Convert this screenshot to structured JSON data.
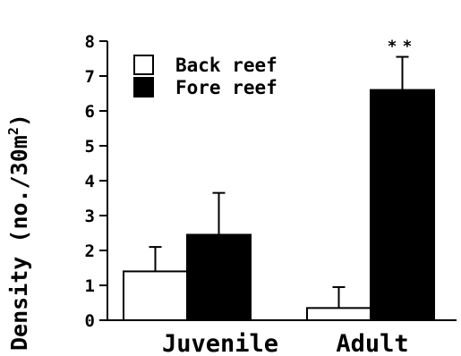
{
  "chart_data": {
    "type": "bar",
    "ylabel_main": "Density  (no./30m",
    "ylabel_sup": "2",
    "ylabel_close": ")",
    "xlabel": "",
    "ylim": [
      0,
      8
    ],
    "yticks": [
      "0",
      "1",
      "2",
      "3",
      "4",
      "5",
      "6",
      "7",
      "8"
    ],
    "categories": [
      "Juvenile",
      "Adult"
    ],
    "legend_position": "top-left",
    "grid": false,
    "series": [
      {
        "name": "Back reef",
        "values": [
          1.4,
          0.35
        ],
        "errors": [
          0.7,
          0.6
        ],
        "color": "#ffffff"
      },
      {
        "name": "Fore reef",
        "values": [
          2.45,
          6.6
        ],
        "errors": [
          1.2,
          0.95
        ],
        "color": "#000000"
      }
    ],
    "annotations": [
      {
        "text": "**",
        "category": "Adult",
        "series": "Fore reef"
      }
    ]
  }
}
